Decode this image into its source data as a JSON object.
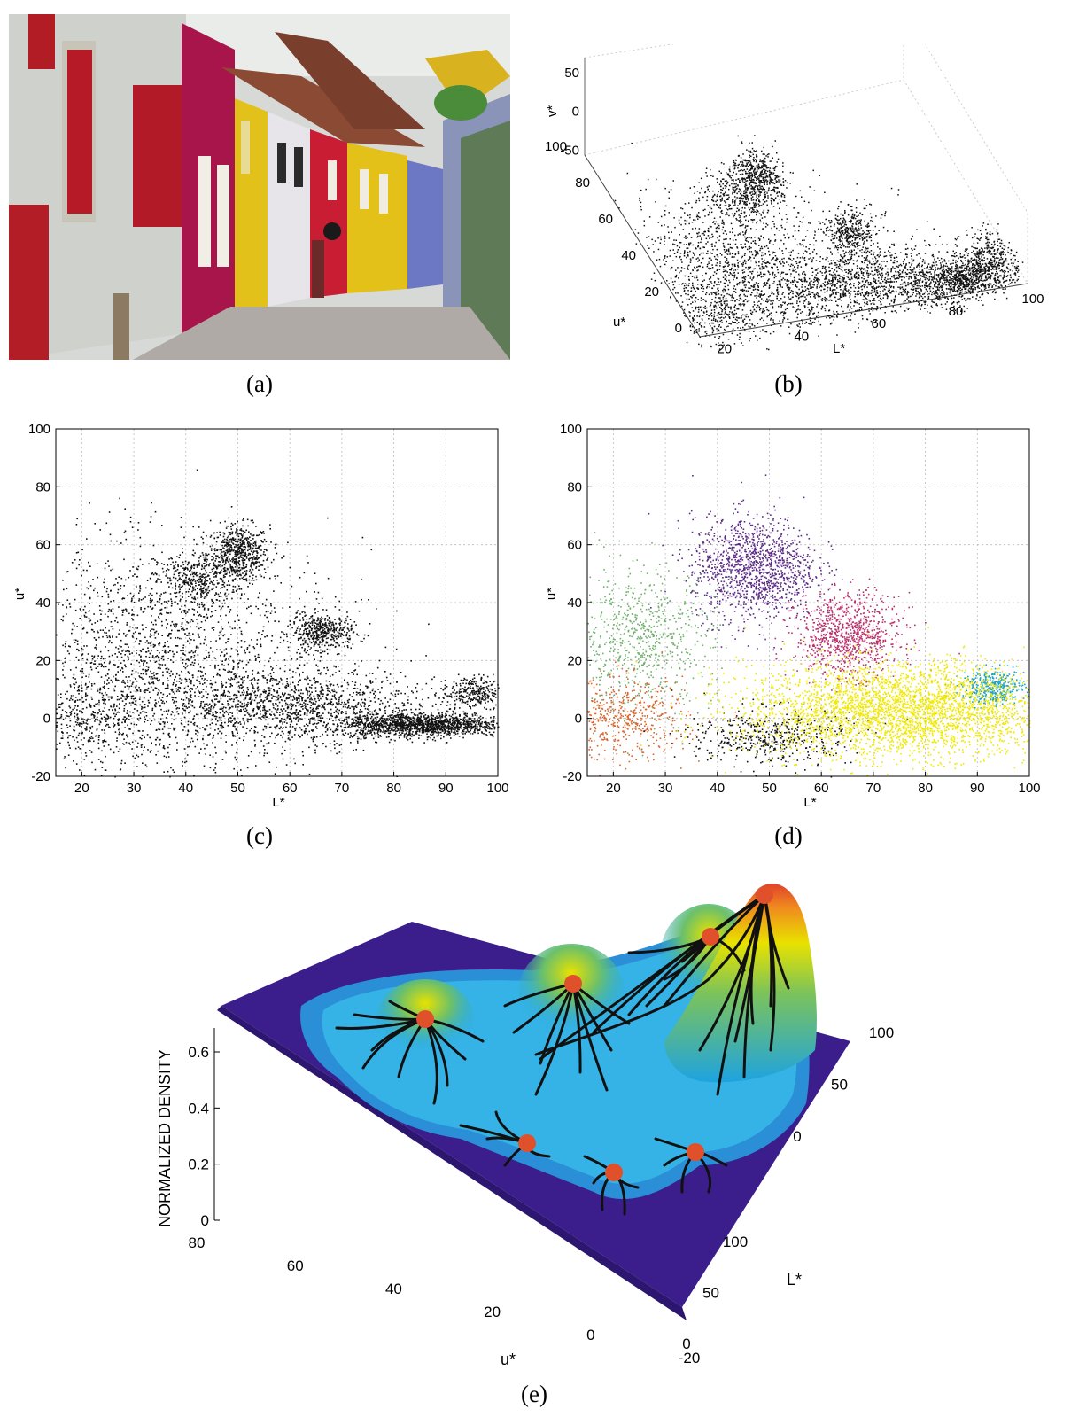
{
  "captions": {
    "a": "(a)",
    "b": "(b)",
    "c": "(c)",
    "d": "(d)",
    "e": "(e)"
  },
  "colors": {
    "black_points": "#111111",
    "purple_cluster": "#5b2b86",
    "magenta_cluster": "#b8336a",
    "green_cluster": "#6fb06a",
    "orange_cluster": "#d9662e",
    "cyan_cluster": "#1fa3c7",
    "yellow_cluster": "#f0e800",
    "grid": "#bbbbbb",
    "mode_marker": "#e0512b",
    "surface_low": "#3b1e8c",
    "surface_mid": "#1ea3e0",
    "surface_high": "#e8e200",
    "surface_peak": "#e0412b"
  },
  "photo": {
    "subject": "street-houses-photo"
  },
  "chart_data": [
    {
      "id": "b",
      "type": "scatter",
      "dimensions": 3,
      "xlabel": "L*",
      "ylabel": "u*",
      "zlabel": "v*",
      "xticks": [
        20,
        40,
        60,
        80,
        100
      ],
      "yticks": [
        0,
        20,
        40,
        60,
        80,
        100
      ],
      "zticks": [
        -50,
        0,
        50
      ],
      "xlim": [
        15,
        100
      ],
      "ylim": [
        0,
        100
      ],
      "zlim": [
        -60,
        60
      ]
    },
    {
      "id": "c",
      "type": "scatter",
      "xlabel": "L*",
      "ylabel": "u*",
      "xlim": [
        15,
        100
      ],
      "ylim": [
        -20,
        100
      ],
      "xticks": [
        20,
        30,
        40,
        50,
        60,
        70,
        80,
        90,
        100
      ],
      "yticks": [
        -20,
        0,
        20,
        40,
        60,
        80,
        100
      ],
      "grid": true,
      "density_clusters": [
        {
          "L": 50,
          "u": 57,
          "spread": [
            3,
            5
          ],
          "weight": 600
        },
        {
          "L": 42,
          "u": 48,
          "spread": [
            4,
            5
          ],
          "weight": 400
        },
        {
          "L": 66,
          "u": 30,
          "spread": [
            3,
            3
          ],
          "weight": 450
        },
        {
          "L": 95,
          "u": 9,
          "spread": [
            3,
            3
          ],
          "weight": 300
        },
        {
          "L": 85,
          "u": -2,
          "spread": [
            8,
            2
          ],
          "weight": 1500
        },
        {
          "L": 60,
          "u": 5,
          "spread": [
            12,
            6
          ],
          "weight": 1200
        },
        {
          "L": 30,
          "u": 20,
          "spread": [
            10,
            20
          ],
          "weight": 1100
        },
        {
          "L": 45,
          "u": 15,
          "spread": [
            15,
            20
          ],
          "weight": 1000
        },
        {
          "L": 20,
          "u": 0,
          "spread": [
            6,
            6
          ],
          "weight": 300
        }
      ]
    },
    {
      "id": "d",
      "type": "scatter",
      "xlabel": "L*",
      "ylabel": "u*",
      "xlim": [
        15,
        100
      ],
      "ylim": [
        -20,
        100
      ],
      "xticks": [
        20,
        30,
        40,
        50,
        60,
        70,
        80,
        90,
        100
      ],
      "yticks": [
        -20,
        0,
        20,
        40,
        60,
        80,
        100
      ],
      "grid": true,
      "clusters": [
        {
          "color": "#5b2b86",
          "L": 47,
          "u": 52,
          "spread": [
            6,
            9
          ],
          "weight": 1300
        },
        {
          "color": "#b8336a",
          "L": 65,
          "u": 29,
          "spread": [
            5,
            7
          ],
          "weight": 900
        },
        {
          "color": "#6fb06a",
          "L": 25,
          "u": 28,
          "spread": [
            7,
            12
          ],
          "weight": 700
        },
        {
          "color": "#d9662e",
          "L": 22,
          "u": 0,
          "spread": [
            6,
            7
          ],
          "weight": 500
        },
        {
          "color": "#1fa3c7",
          "L": 93,
          "u": 11,
          "spread": [
            3,
            3
          ],
          "weight": 400
        },
        {
          "color": "#111111",
          "L": 50,
          "u": -6,
          "spread": [
            8,
            5
          ],
          "weight": 500
        },
        {
          "color": "#f0e800",
          "L": 75,
          "u": 3,
          "spread": [
            15,
            8
          ],
          "weight": 3500
        }
      ]
    },
    {
      "id": "e",
      "type": "surface",
      "zlabel": "NORMALIZED DENSITY",
      "xlabel": "u*",
      "ylabel": "L*",
      "zticks": [
        0,
        0.2,
        0.4,
        0.6
      ],
      "u_ticks": [
        80,
        60,
        40,
        20,
        0,
        -20
      ],
      "L_ticks": [
        0,
        50,
        100
      ],
      "v_ticks": [
        0,
        50,
        100
      ],
      "modes": 7
    }
  ]
}
